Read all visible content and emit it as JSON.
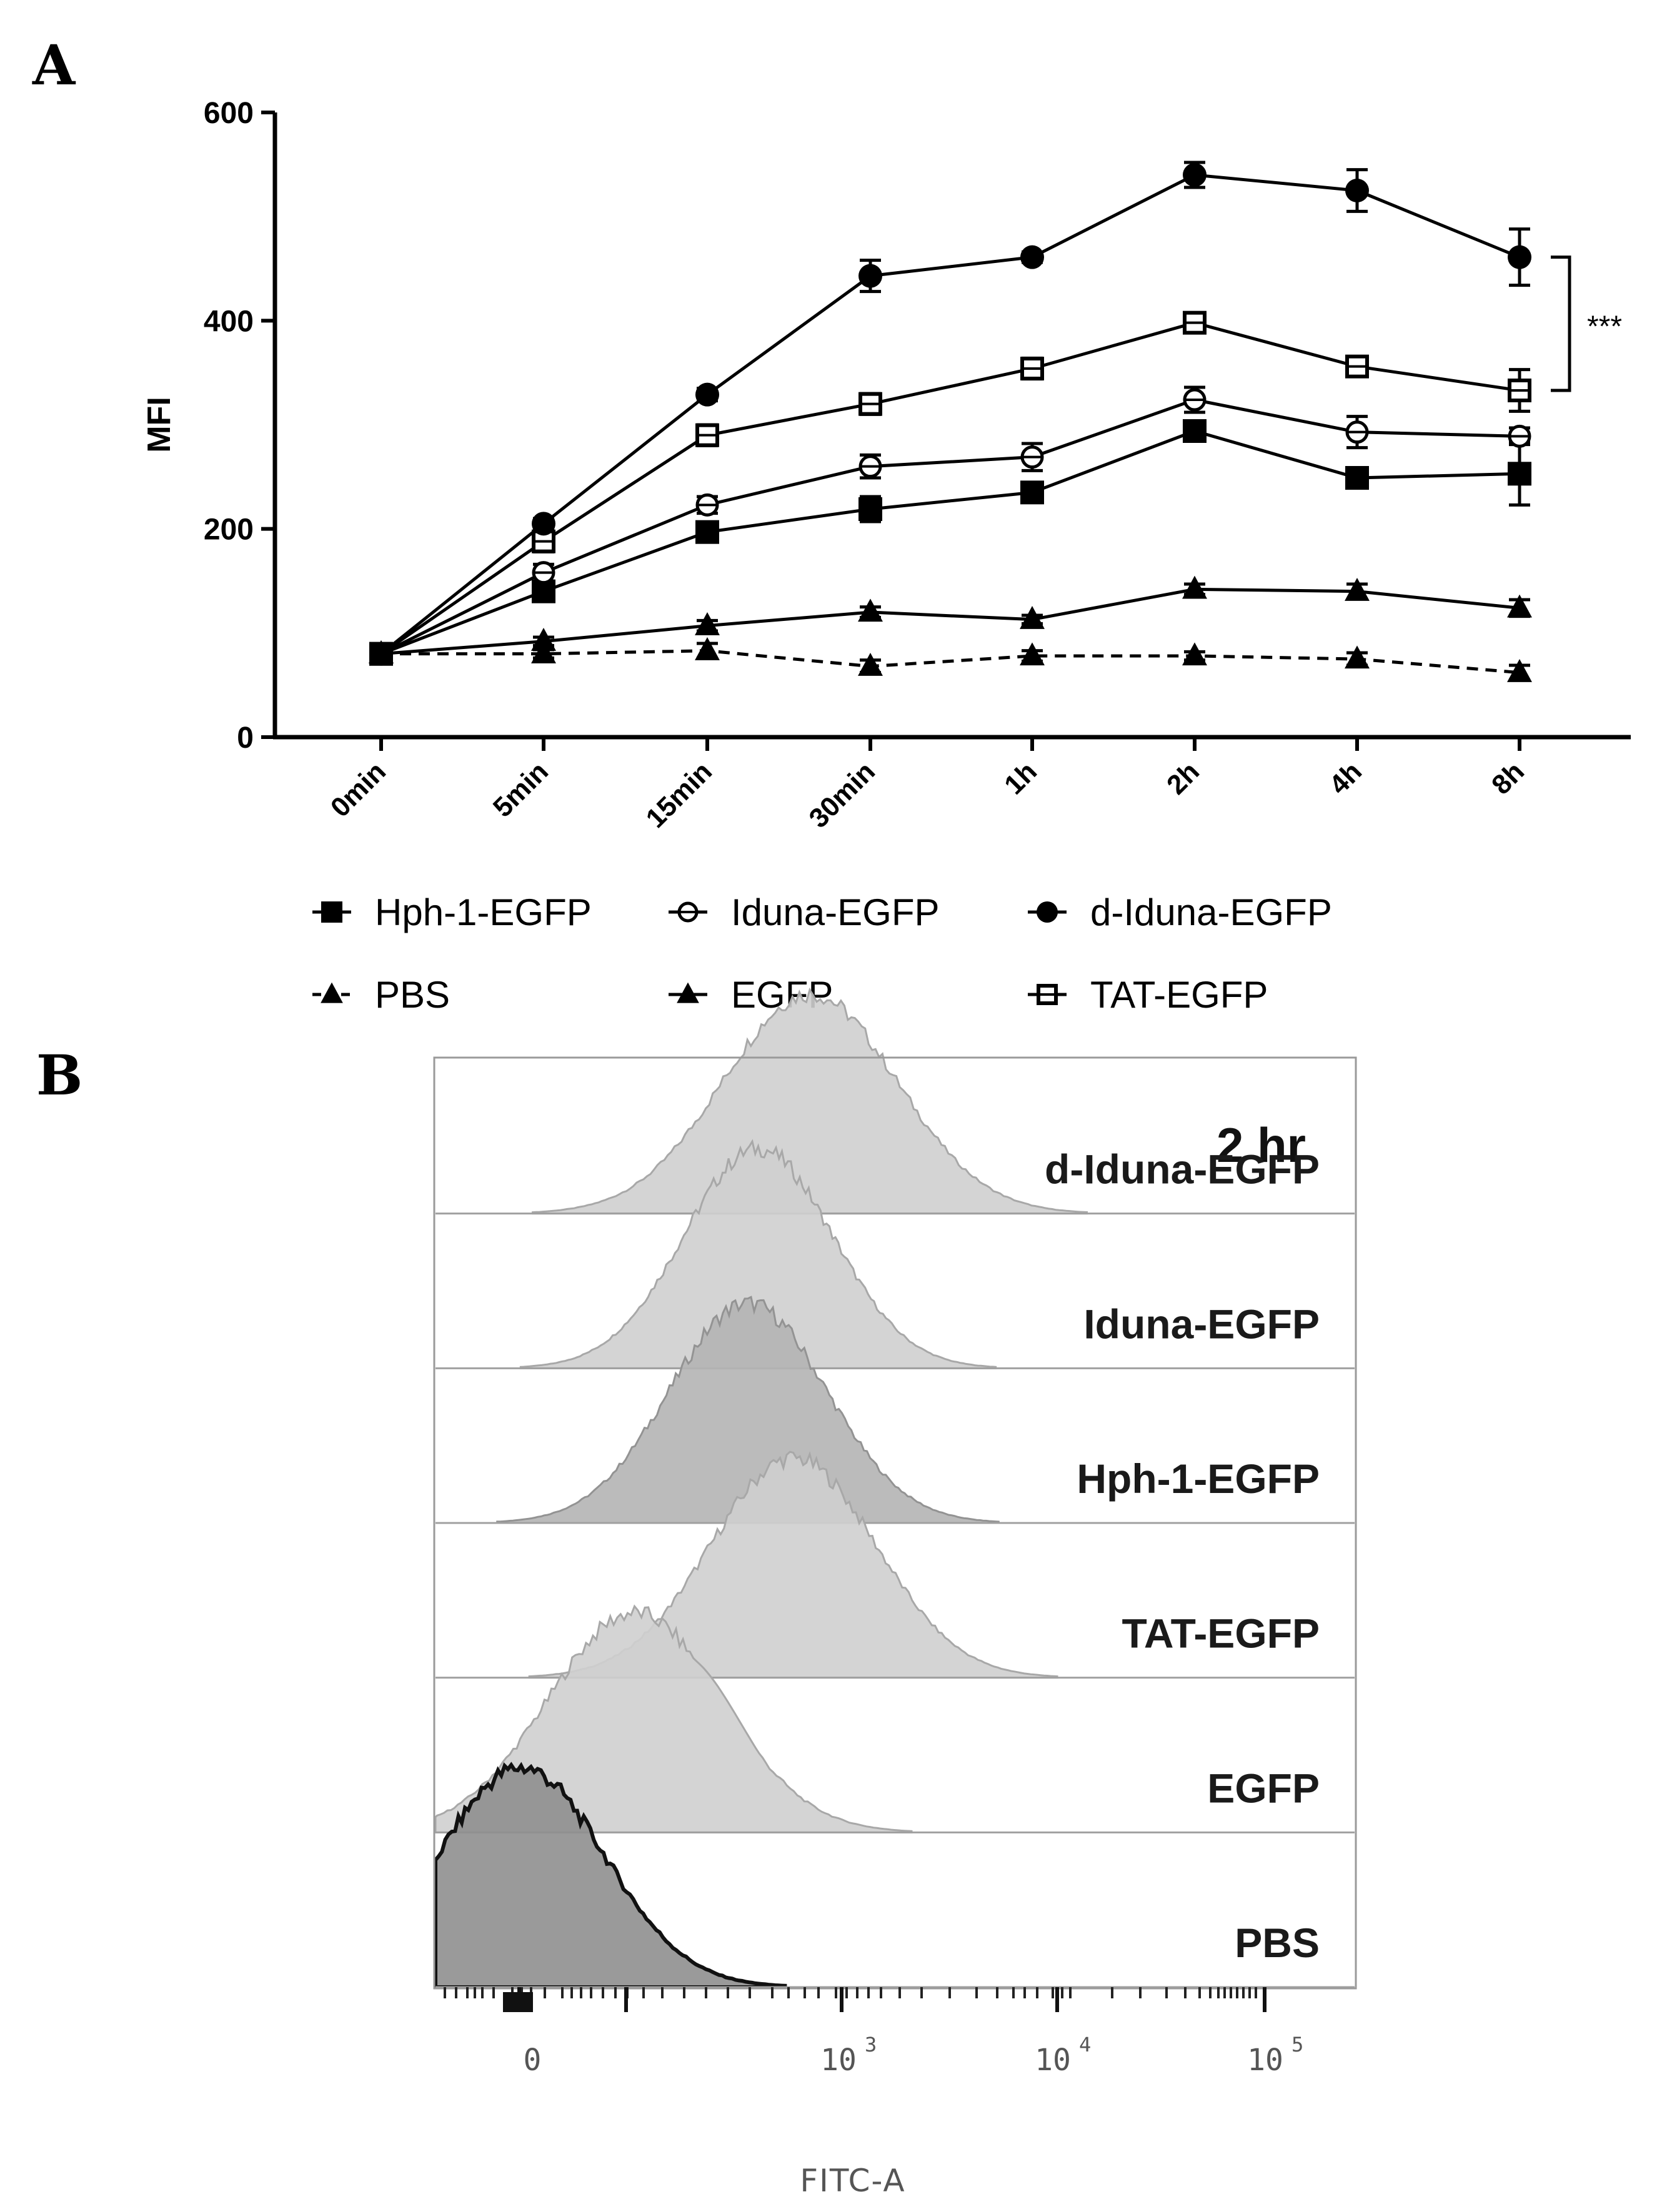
{
  "panels": {
    "a": "A",
    "b": "B"
  },
  "colors": {
    "line": "#000000",
    "hist_fill": "#c8c8c8",
    "hist_fill_dark": "#8c8c8c",
    "hist_edge": "#9a9a9a",
    "frame": "#9a9a9a"
  },
  "chart_data": [
    {
      "type": "line",
      "panel": "A",
      "ylabel": "MFI",
      "xlabel": "",
      "categories": [
        "0min",
        "5min",
        "15min",
        "30min",
        "1h",
        "2h",
        "4h",
        "8h"
      ],
      "ylim": [
        0,
        600
      ],
      "yticks": [
        "0",
        "200",
        "400",
        "600"
      ],
      "legend_position": "bottom",
      "series": [
        {
          "name": "Hph-1-EGFP",
          "marker": "square-filled",
          "dash": "solid",
          "values": [
            80,
            140,
            197,
            219,
            235,
            294,
            249,
            253
          ],
          "errors": [
            3,
            8,
            6,
            12,
            8,
            8,
            7,
            30
          ]
        },
        {
          "name": "Iduna-EGFP",
          "marker": "circle-open",
          "dash": "solid",
          "values": [
            80,
            158,
            223,
            260,
            269,
            324,
            293,
            289
          ],
          "errors": [
            3,
            8,
            8,
            11,
            13,
            12,
            15,
            8
          ]
        },
        {
          "name": "d-Iduna-EGFP",
          "marker": "circle-filled",
          "dash": "solid",
          "values": [
            80,
            205,
            329,
            443,
            461,
            540,
            525,
            461
          ],
          "errors": [
            3,
            5,
            6,
            15,
            5,
            12,
            20,
            27
          ]
        },
        {
          "name": "PBS",
          "marker": "triangle-filled",
          "dash": "dashed",
          "values": [
            80,
            80,
            83,
            68,
            78,
            78,
            75,
            62
          ],
          "errors": [
            3,
            4,
            7,
            6,
            5,
            4,
            6,
            7
          ]
        },
        {
          "name": "EGFP",
          "marker": "triangle-filled",
          "dash": "solid",
          "values": [
            80,
            92,
            107,
            120,
            113,
            142,
            140,
            124
          ],
          "errors": [
            3,
            4,
            5,
            5,
            4,
            5,
            7,
            8
          ]
        },
        {
          "name": "TAT-EGFP",
          "marker": "square-open",
          "dash": "solid",
          "values": [
            80,
            188,
            290,
            320,
            354,
            398,
            356,
            333
          ],
          "errors": [
            3,
            10,
            10,
            10,
            10,
            8,
            8,
            20
          ]
        }
      ],
      "legend_layout": [
        [
          "Hph-1-EGFP",
          "Iduna-EGFP",
          "d-Iduna-EGFP"
        ],
        [
          "PBS",
          "EGFP",
          "TAT-EGFP"
        ]
      ],
      "annotation": {
        "text": "***",
        "between": [
          "d-Iduna-EGFP",
          "TAT-EGFP"
        ],
        "at_category": "8h"
      }
    },
    {
      "type": "histogram",
      "panel": "B",
      "title": "2 hr",
      "xlabel": "FITC-A",
      "x_scale": "log",
      "x_ticks": [
        {
          "base": "0",
          "exp": ""
        },
        {
          "base": "10",
          "exp": "3"
        },
        {
          "base": "10",
          "exp": "4"
        },
        {
          "base": "10",
          "exp": "5"
        }
      ],
      "tracks": [
        {
          "label": "d-Iduna-EGFP",
          "peak_log10": 2.7,
          "spread": 0.42,
          "shade": "light"
        },
        {
          "label": "Iduna-EGFP",
          "peak_log10": 2.45,
          "spread": 0.36,
          "shade": "light"
        },
        {
          "label": "Hph-1-EGFP",
          "peak_log10": 2.4,
          "spread": 0.38,
          "shade": "mid"
        },
        {
          "label": "TAT-EGFP",
          "peak_log10": 2.62,
          "spread": 0.4,
          "shade": "light"
        },
        {
          "label": "EGFP",
          "peak_log10": 1.85,
          "spread": 0.42,
          "shade": "light"
        },
        {
          "label": "PBS",
          "peak_log10": 1.3,
          "spread": 0.4,
          "shade": "dark"
        }
      ]
    }
  ]
}
